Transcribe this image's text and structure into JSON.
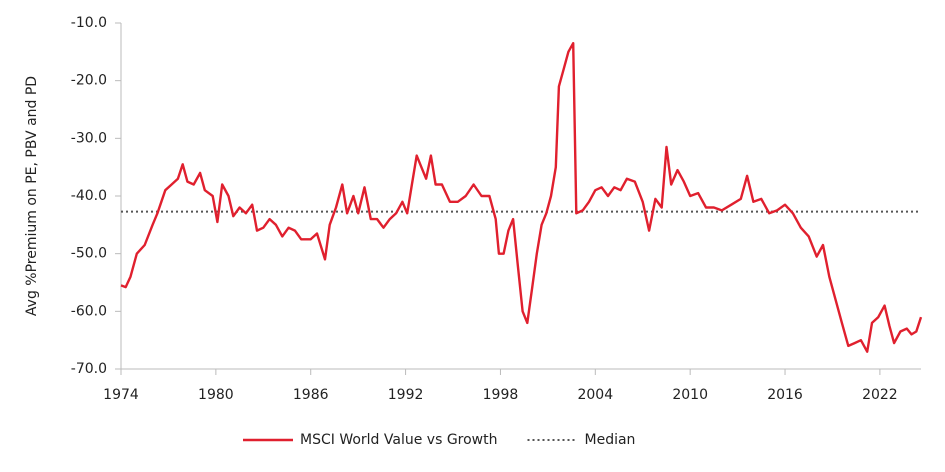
{
  "chart_data": {
    "type": "line",
    "y_label": "Avg %Premium on PE, PBV and PD",
    "x": [
      1974.0,
      1974.3,
      1974.6,
      1975.0,
      1975.5,
      1976.0,
      1976.3,
      1976.8,
      1977.2,
      1977.6,
      1977.9,
      1978.2,
      1978.6,
      1979.0,
      1979.3,
      1979.8,
      1980.1,
      1980.4,
      1980.8,
      1981.1,
      1981.5,
      1981.9,
      1982.3,
      1982.6,
      1983.0,
      1983.4,
      1983.8,
      1984.2,
      1984.6,
      1985.0,
      1985.4,
      1986.0,
      1986.4,
      1986.9,
      1987.2,
      1987.6,
      1988.0,
      1988.3,
      1988.7,
      1989.0,
      1989.4,
      1989.8,
      1990.2,
      1990.6,
      1991.0,
      1991.4,
      1991.8,
      1992.1,
      1992.4,
      1992.7,
      1993.0,
      1993.3,
      1993.6,
      1993.9,
      1994.3,
      1994.8,
      1995.3,
      1995.8,
      1996.3,
      1996.8,
      1997.3,
      1997.7,
      1997.9,
      1998.2,
      1998.5,
      1998.8,
      1999.1,
      1999.4,
      1999.7,
      2000.0,
      2000.3,
      2000.6,
      2000.9,
      2001.2,
      2001.5,
      2001.7,
      2002.0,
      2002.3,
      2002.6,
      2002.8,
      2003.2,
      2003.6,
      2004.0,
      2004.4,
      2004.8,
      2005.2,
      2005.6,
      2006.0,
      2006.5,
      2007.0,
      2007.4,
      2007.8,
      2008.2,
      2008.5,
      2008.8,
      2009.2,
      2009.6,
      2010.0,
      2010.5,
      2011.0,
      2011.5,
      2012.0,
      2012.6,
      2013.2,
      2013.6,
      2014.0,
      2014.5,
      2015.0,
      2015.5,
      2016.0,
      2016.5,
      2017.0,
      2017.5,
      2018.0,
      2018.4,
      2018.8,
      2019.2,
      2019.6,
      2020.0,
      2020.4,
      2020.8,
      2021.2,
      2021.5,
      2021.9,
      2022.3,
      2022.6,
      2022.9,
      2023.3,
      2023.7,
      2024.0,
      2024.3,
      2024.6
    ],
    "series": [
      {
        "name": "MSCI World Value vs Growth",
        "color": "#e0202e",
        "values": [
          -55.5,
          -55.8,
          -54,
          -50,
          -48.5,
          -45,
          -43,
          -39,
          -38,
          -37,
          -34.5,
          -37.5,
          -38,
          -36,
          -39,
          -40,
          -44.5,
          -38,
          -40,
          -43.5,
          -42,
          -43,
          -41.5,
          -46,
          -45.5,
          -44,
          -45,
          -47,
          -45.5,
          -46,
          -47.5,
          -47.5,
          -46.5,
          -51,
          -45,
          -42,
          -38,
          -43,
          -40,
          -43,
          -38.5,
          -44,
          -44,
          -45.5,
          -44,
          -43,
          -41,
          -43,
          -38,
          -33,
          -35,
          -37,
          -33,
          -38,
          -38,
          -41,
          -41,
          -40,
          -38,
          -40,
          -40,
          -44,
          -50,
          -50,
          -46,
          -44,
          -52,
          -60,
          -62,
          -56,
          -50,
          -45,
          -43,
          -40,
          -35,
          -21,
          -18,
          -15,
          -13.5,
          -43,
          -42.5,
          -41,
          -39,
          -38.5,
          -40,
          -38.5,
          -39,
          -37,
          -37.5,
          -41,
          -46,
          -40.5,
          -42,
          -31.5,
          -38,
          -35.5,
          -37.5,
          -40,
          -39.5,
          -42,
          -42,
          -42.5,
          -41.5,
          -40.5,
          -36.5,
          -41,
          -40.5,
          -43,
          -42.5,
          -41.5,
          -43,
          -45.5,
          -47,
          -50.5,
          -48.5,
          -54,
          -58,
          -62,
          -66,
          -65.5,
          -65,
          -67,
          -62,
          -61,
          -59,
          -62.5,
          -65.5,
          -63.5,
          -63,
          -64,
          -63.5,
          -61
        ]
      }
    ],
    "reference_lines": [
      {
        "name": "Median",
        "value": -42.7,
        "color": "#555555",
        "style": "dotted"
      }
    ],
    "xlim": [
      1974,
      2024.6
    ],
    "xticks": [
      1974,
      1980,
      1986,
      1992,
      1998,
      2004,
      2010,
      2016,
      2022
    ],
    "ylim": [
      -70,
      -10
    ],
    "yticks": [
      {
        "value": -10,
        "label": "-10.0"
      },
      {
        "value": -20,
        "label": "-20.0"
      },
      {
        "value": -30,
        "label": "-30.0"
      },
      {
        "value": -40,
        "label": "-40.0"
      },
      {
        "value": -50,
        "label": "-50.0"
      },
      {
        "value": -60,
        "label": "-60.0"
      },
      {
        "value": -70,
        "label": "-70.0"
      }
    ],
    "legend": "bottom"
  }
}
